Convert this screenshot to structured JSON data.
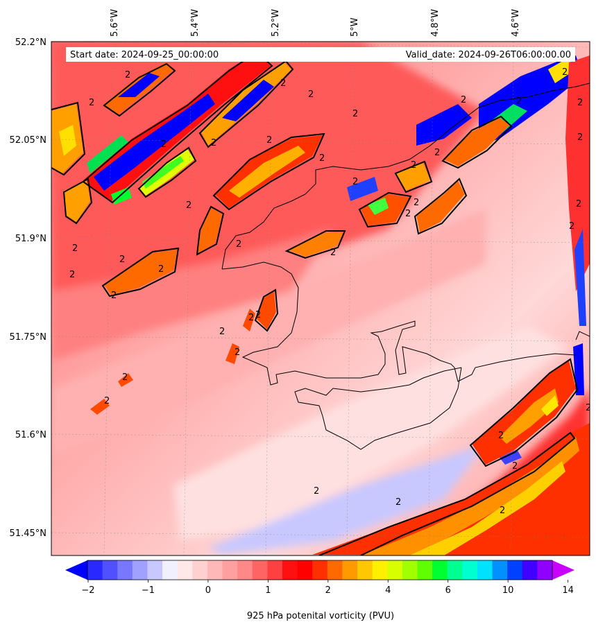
{
  "map": {
    "start_label": "Start date: 2024-09-25_00:00:00",
    "valid_label": "Valid_date: 2024-09-26T06:00:00.00",
    "lon_labels": [
      "5.6°W",
      "5.4°W",
      "5.2°W",
      "5°W",
      "4.8°W",
      "4.6°W"
    ],
    "lat_labels": [
      "52.2°N",
      "52.05°N",
      "51.9°N",
      "51.75°N",
      "51.6°N",
      "51.45°N"
    ],
    "contour_level_label": "2",
    "gridlines": "dashed"
  },
  "colorbar": {
    "title": "925 hPa potenital vorticity (PVU)",
    "tick_labels": [
      "−2",
      "−1",
      "0",
      "1",
      "2",
      "4",
      "6",
      "10",
      "14"
    ],
    "extend": "both",
    "colors": [
      "#0000ff",
      "#2828ff",
      "#5050ff",
      "#7878ff",
      "#a0a0ff",
      "#c8c8ff",
      "#f0f0ff",
      "#ffe8e8",
      "#ffd0d0",
      "#ffb8b8",
      "#ffa0a0",
      "#ff8888",
      "#ff6464",
      "#ff4040",
      "#ff1010",
      "#ff0000",
      "#ff3000",
      "#ff6a00",
      "#ff9a00",
      "#ffc800",
      "#fff000",
      "#d8ff00",
      "#a0ff00",
      "#60ff00",
      "#00ff30",
      "#00ff90",
      "#00ffd0",
      "#00e0ff",
      "#0090ff",
      "#0040ff",
      "#4000ff",
      "#9000ff",
      "#c800ff"
    ]
  }
}
